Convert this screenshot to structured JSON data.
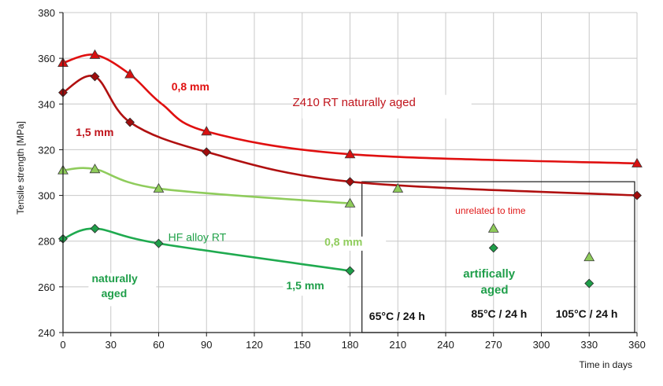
{
  "chart_data": {
    "type": "line",
    "xlabel": "Time in days",
    "ylabel": "Tensile strength  [MPa]",
    "xlim": [
      0,
      360
    ],
    "ylim": [
      240,
      380
    ],
    "xticks": [
      0,
      30,
      60,
      90,
      120,
      150,
      180,
      210,
      240,
      270,
      300,
      330,
      360
    ],
    "yticks": [
      240,
      260,
      280,
      300,
      320,
      340,
      360,
      380
    ],
    "grid": true,
    "series": [
      {
        "color": "#e01010",
        "marker": "triangle",
        "marker_color": "#d81010",
        "curve": [
          [
            0,
            358
          ],
          [
            20,
            361.5
          ],
          [
            42,
            353
          ],
          [
            62,
            340
          ],
          [
            90,
            328
          ],
          [
            180,
            318
          ],
          [
            360,
            314
          ]
        ],
        "points": [
          [
            0,
            358
          ],
          [
            20,
            361.5
          ],
          [
            42,
            353
          ],
          [
            90,
            328
          ],
          [
            180,
            318
          ],
          [
            360,
            314
          ]
        ]
      },
      {
        "color": "#b01010",
        "marker": "diamond",
        "marker_color": "#a00d0d",
        "curve": [
          [
            0,
            345
          ],
          [
            20,
            352
          ],
          [
            42,
            332
          ],
          [
            90,
            319
          ],
          [
            180,
            306
          ],
          [
            360,
            300
          ]
        ],
        "points": [
          [
            0,
            345
          ],
          [
            20,
            352
          ],
          [
            42,
            332
          ],
          [
            90,
            319
          ],
          [
            180,
            306
          ],
          [
            360,
            300
          ]
        ]
      },
      {
        "color": "#8fcc5c",
        "marker": "triangle",
        "marker_color": "#8ecb5a",
        "curve": [
          [
            0,
            311
          ],
          [
            20,
            311.5
          ],
          [
            60,
            303
          ],
          [
            180,
            296.5
          ]
        ],
        "points": [
          [
            0,
            311
          ],
          [
            20,
            311.5
          ],
          [
            60,
            303
          ],
          [
            180,
            296.5
          ],
          [
            210,
            303
          ],
          [
            270,
            285.5
          ],
          [
            330,
            273
          ]
        ]
      },
      {
        "color": "#1faa4f",
        "marker": "diamond",
        "marker_color": "#1e9e49",
        "curve": [
          [
            0,
            281
          ],
          [
            20,
            285.5
          ],
          [
            60,
            279
          ],
          [
            180,
            267
          ]
        ],
        "points": [
          [
            0,
            281
          ],
          [
            20,
            285.5
          ],
          [
            60,
            279
          ],
          [
            180,
            267
          ],
          [
            270,
            277
          ],
          [
            330,
            261.5
          ]
        ]
      }
    ],
    "annotations": [
      {
        "text": "Z410  RT  naturally aged",
        "x": 144,
        "y": 339,
        "color": "#c0141c",
        "bold": false,
        "size": 15
      },
      {
        "text": "0,8 mm",
        "x": 68,
        "y": 346,
        "color": "#e01010",
        "bold": true,
        "size": 14
      },
      {
        "text": "1,5 mm",
        "x": 8,
        "y": 326,
        "color": "#c0141c",
        "bold": true,
        "size": 14
      },
      {
        "text": "HF alloy  RT",
        "x": 66,
        "y": 280,
        "color": "#22a24a",
        "bold": false,
        "size": 14
      },
      {
        "text": "0,8 mm",
        "x": 164,
        "y": 278,
        "color": "#8fcc5c",
        "bold": true,
        "size": 14
      },
      {
        "text": "naturally",
        "x": 18,
        "y": 262,
        "color": "#1e9e49",
        "bold": true,
        "size": 14
      },
      {
        "text": "aged",
        "x": 24,
        "y": 255.5,
        "color": "#1e9e49",
        "bold": true,
        "size": 14
      },
      {
        "text": "1,5 mm",
        "x": 140,
        "y": 259,
        "color": "#1e9e49",
        "bold": true,
        "size": 14
      },
      {
        "text": "unrelated to time",
        "x": 246,
        "y": 292,
        "color": "#e01a1a",
        "bold": false,
        "size": 12
      },
      {
        "text": "artifically",
        "x": 251,
        "y": 264,
        "color": "#1e9e49",
        "bold": true,
        "size": 15
      },
      {
        "text": "aged",
        "x": 262,
        "y": 257,
        "color": "#1e9e49",
        "bold": true,
        "size": 15
      },
      {
        "text": "65°C / 24 h",
        "x": 192,
        "y": 245.5,
        "color": "#111111",
        "bold": true,
        "size": 14
      },
      {
        "text": "85°C / 24 h",
        "x": 256,
        "y": 246.5,
        "color": "#111111",
        "bold": true,
        "size": 14
      },
      {
        "text": "105°C / 24 h",
        "x": 309,
        "y": 246.5,
        "color": "#111111",
        "bold": true,
        "size": 14
      }
    ]
  }
}
